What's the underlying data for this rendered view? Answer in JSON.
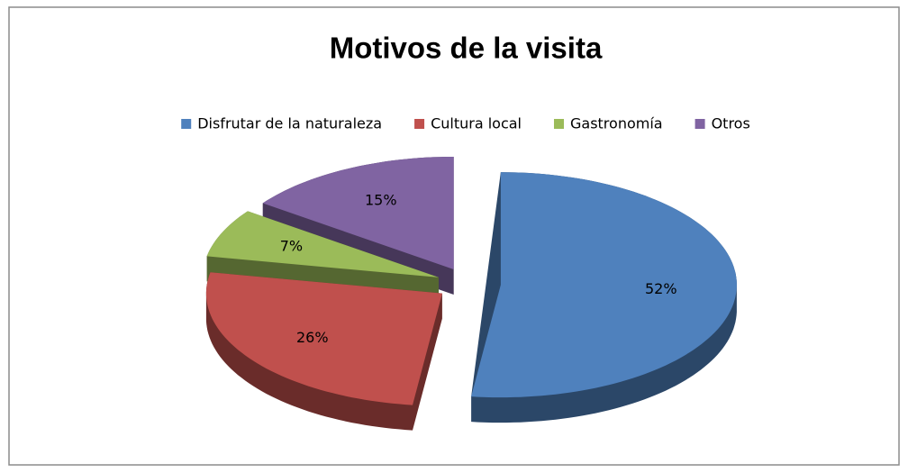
{
  "chart_data": {
    "type": "pie",
    "title": "Motivos de la visita",
    "categories": [
      "Disfrutar de la naturaleza",
      "Cultura local",
      "Gastronomía",
      "Otros"
    ],
    "values": [
      52,
      26,
      7,
      15
    ],
    "value_labels": [
      "52%",
      "26%",
      "7%",
      "15%"
    ],
    "colors": [
      "#4F81BD",
      "#C0504D",
      "#9BBB59",
      "#8064A2"
    ],
    "legend": "top"
  }
}
